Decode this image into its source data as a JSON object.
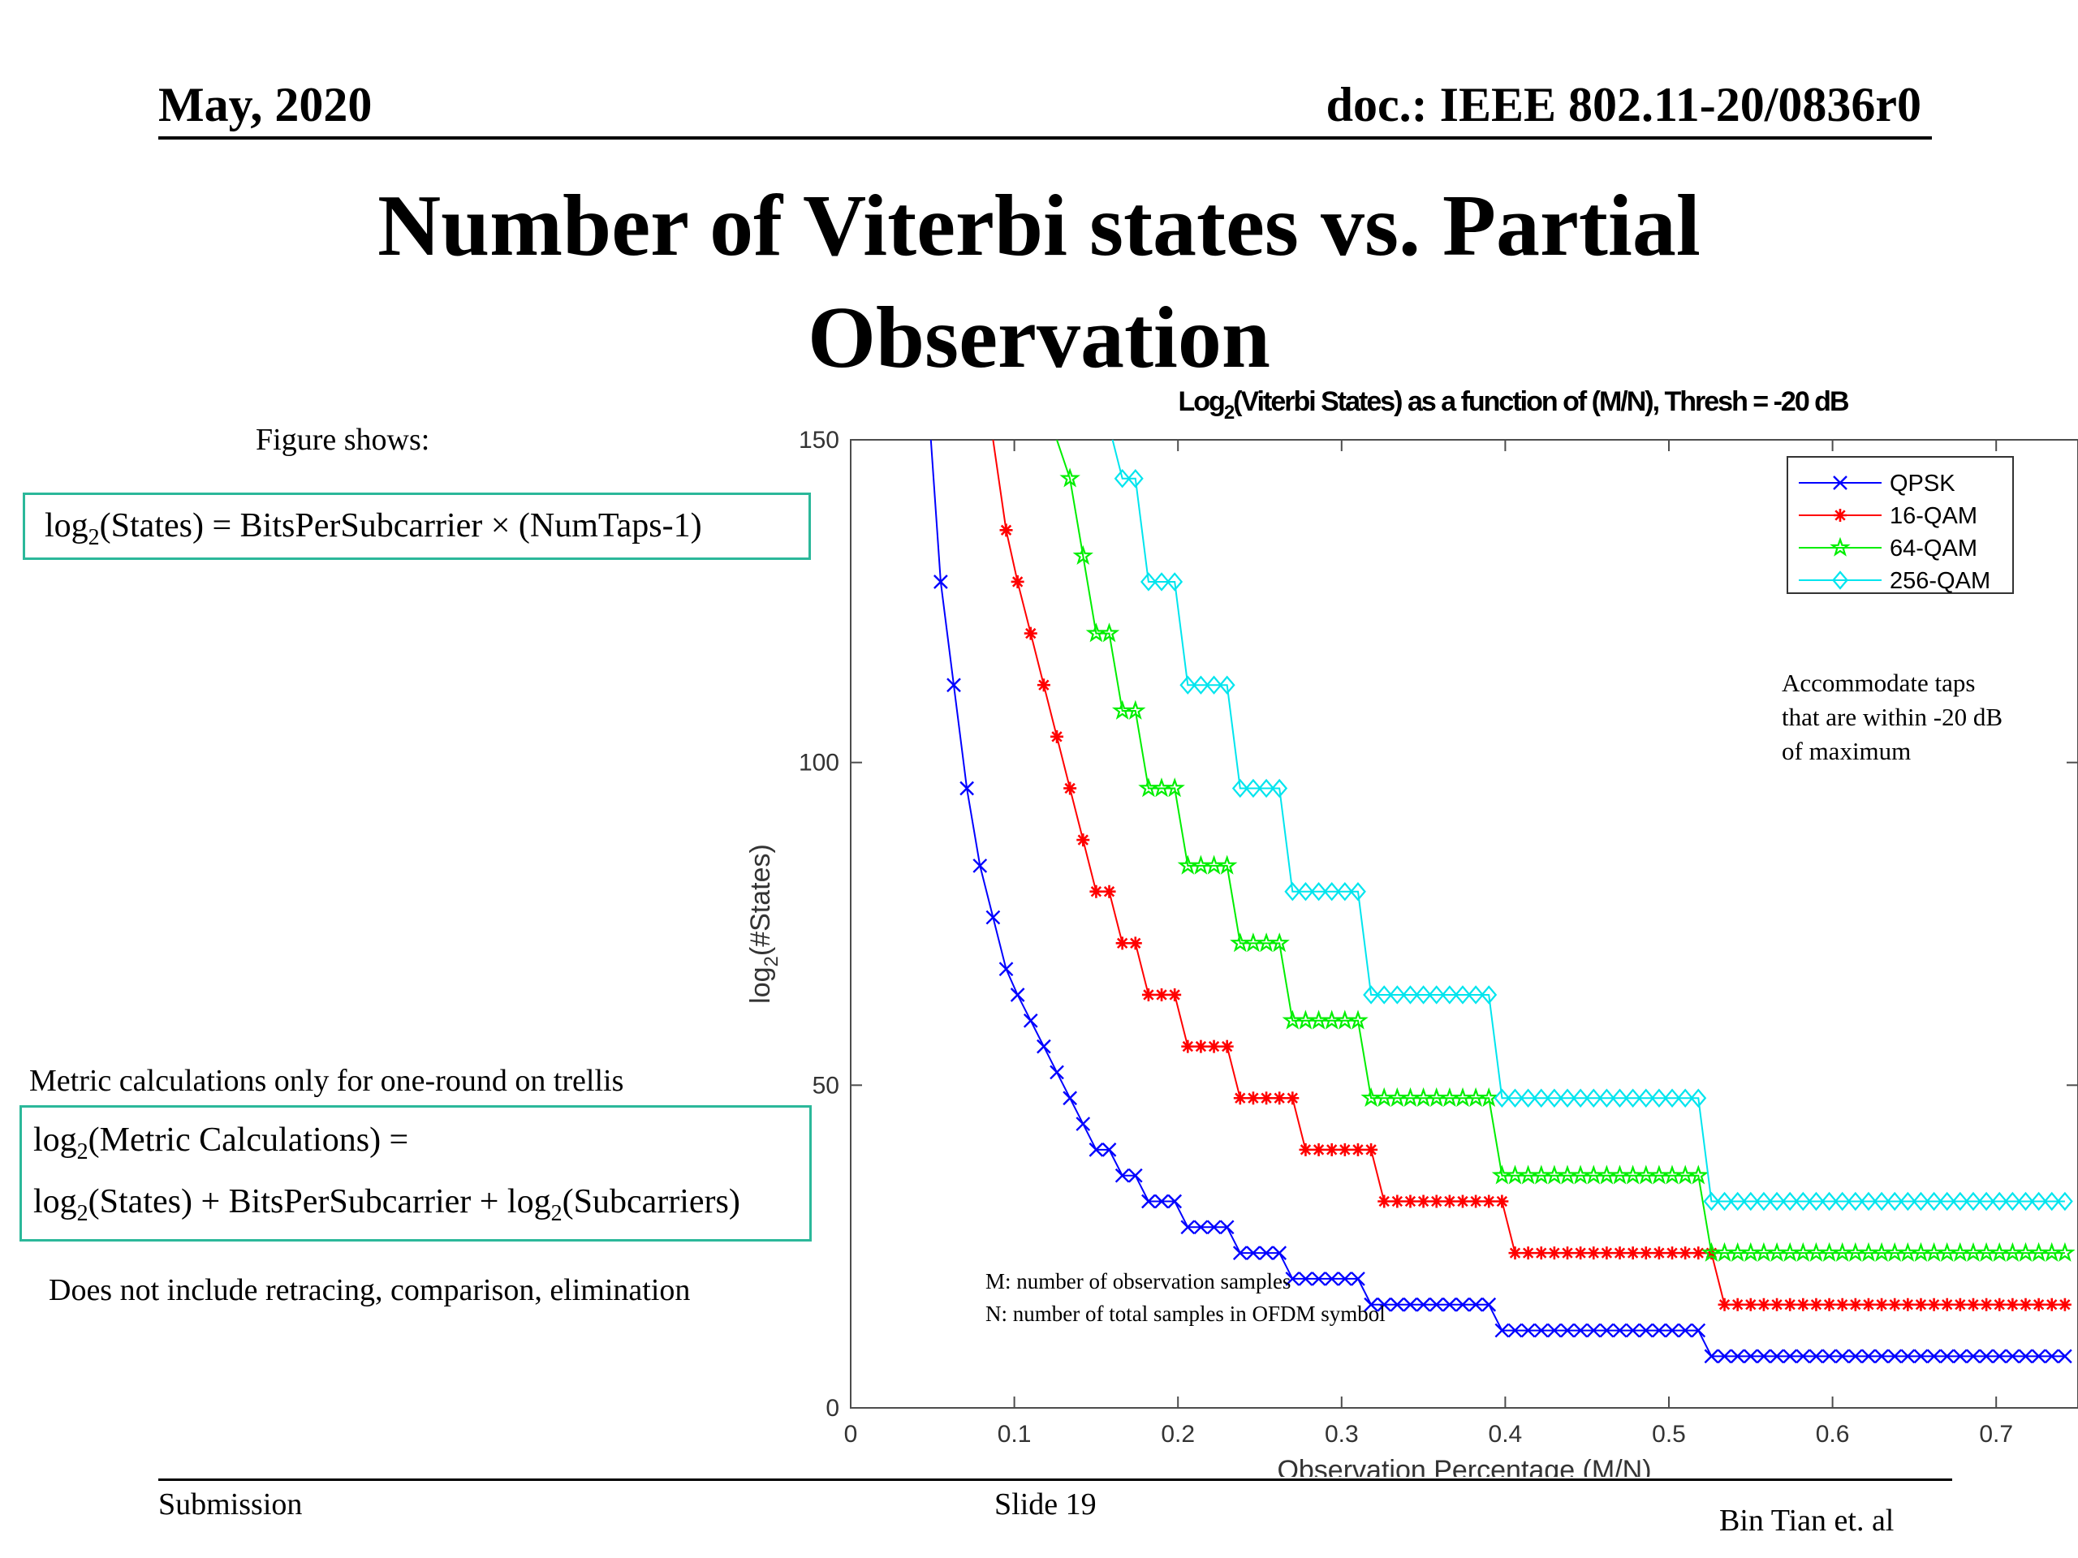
{
  "header": {
    "left": "May, 2020",
    "right": "doc.: IEEE 802.11-20/0836r0"
  },
  "title_lines": [
    "Number of Viterbi states vs. Partial",
    "Observation"
  ],
  "left_panel": {
    "figure_shows": "Figure shows:",
    "formula1": {
      "a": "log",
      "a_sub": "2",
      "b": "(States) = BitsPerSubcarrier × (NumTaps-1)"
    },
    "metric_label": "Metric calculations only for one-round on trellis",
    "formula2_line1": {
      "a": "log",
      "a_sub": "2",
      "b": "(Metric Calculations) ="
    },
    "formula2_line2": {
      "a": "log",
      "a_sub": "2",
      "b": "(States) + BitsPerSubcarrier + log",
      "c_sub": "2",
      "d": "(Subcarriers)"
    },
    "note": "Does not include retracing, comparison, elimination"
  },
  "footer": {
    "left": "Submission",
    "center": "Slide 19",
    "right": "Bin Tian et. al"
  },
  "colors": {
    "accent_box": "#2bb89a",
    "qpsk": "#0000ff",
    "qam16": "#ff0000",
    "qam64": "#00ee00",
    "qam256": "#00e5ee"
  },
  "chart_data": {
    "type": "line",
    "title_pre": "Log",
    "title_sub": "2",
    "title_post": "(Viterbi States) as a function of (M/N), Thresh = -20 dB",
    "xlabel": "Observation Percentage (M/N)",
    "ylabel_pre": "log",
    "ylabel_sub": "2",
    "ylabel_post": "(#States)",
    "xlim": [
      0,
      0.75
    ],
    "ylim": [
      0,
      150
    ],
    "xticks": [
      0,
      0.1,
      0.2,
      0.3,
      0.4,
      0.5,
      0.6,
      0.7
    ],
    "xtick_labels": [
      "0",
      "0.1",
      "0.2",
      "0.3",
      "0.4",
      "0.5",
      "0.6",
      "0.7"
    ],
    "yticks": [
      0,
      50,
      100,
      150
    ],
    "ytick_labels": [
      "0",
      "50",
      "100",
      "150"
    ],
    "legend_position": "top-right",
    "series": [
      {
        "name": "QPSK",
        "color": "#0000ff",
        "marker": "x",
        "x": [
          0.049,
          0.055,
          0.063,
          0.071,
          0.079,
          0.087,
          0.095,
          0.102,
          0.11,
          0.118,
          0.126,
          0.134,
          0.142,
          0.15,
          0.158,
          0.166,
          0.174,
          0.182,
          0.19,
          0.198,
          0.206,
          0.214,
          0.222,
          0.23,
          0.238,
          0.246,
          0.254,
          0.262,
          0.27,
          0.278,
          0.286,
          0.294,
          0.302,
          0.31,
          0.318,
          0.326,
          0.334,
          0.342,
          0.35,
          0.358,
          0.366,
          0.374,
          0.382,
          0.39,
          0.398,
          0.406,
          0.414,
          0.422,
          0.43,
          0.438,
          0.446,
          0.454,
          0.462,
          0.47,
          0.478,
          0.486,
          0.494,
          0.502,
          0.51,
          0.518,
          0.526,
          0.534,
          0.542,
          0.55,
          0.558,
          0.566,
          0.574,
          0.582,
          0.59,
          0.598,
          0.606,
          0.614,
          0.622,
          0.63,
          0.638,
          0.646,
          0.654,
          0.662,
          0.67,
          0.678,
          0.686,
          0.694,
          0.702,
          0.71,
          0.718,
          0.726,
          0.734,
          0.742
        ],
        "y": [
          150,
          128,
          112,
          96,
          84,
          76,
          68,
          64,
          60,
          56,
          52,
          48,
          44,
          40,
          40,
          36,
          36,
          32,
          32,
          32,
          28,
          28,
          28,
          28,
          24,
          24,
          24,
          24,
          20,
          20,
          20,
          20,
          20,
          20,
          16,
          16,
          16,
          16,
          16,
          16,
          16,
          16,
          16,
          16,
          12,
          12,
          12,
          12,
          12,
          12,
          12,
          12,
          12,
          12,
          12,
          12,
          12,
          12,
          12,
          12,
          8,
          8,
          8,
          8,
          8,
          8,
          8,
          8,
          8,
          8,
          8,
          8,
          8,
          8,
          8,
          8,
          8,
          8,
          8,
          8,
          8,
          8,
          8,
          8,
          8,
          8,
          8,
          8
        ]
      },
      {
        "name": "16-QAM",
        "color": "#ff0000",
        "marker": "*",
        "x": [
          0.087,
          0.095,
          0.102,
          0.11,
          0.118,
          0.126,
          0.134,
          0.142,
          0.15,
          0.158,
          0.166,
          0.174,
          0.182,
          0.19,
          0.198,
          0.206,
          0.214,
          0.222,
          0.23,
          0.238,
          0.246,
          0.254,
          0.262,
          0.27,
          0.278,
          0.286,
          0.294,
          0.302,
          0.31,
          0.318,
          0.326,
          0.334,
          0.342,
          0.35,
          0.358,
          0.366,
          0.374,
          0.382,
          0.39,
          0.398,
          0.406,
          0.414,
          0.422,
          0.43,
          0.438,
          0.446,
          0.454,
          0.462,
          0.47,
          0.478,
          0.486,
          0.494,
          0.502,
          0.51,
          0.518,
          0.526,
          0.534,
          0.542,
          0.55,
          0.558,
          0.566,
          0.574,
          0.582,
          0.59,
          0.598,
          0.606,
          0.614,
          0.622,
          0.63,
          0.638,
          0.646,
          0.654,
          0.662,
          0.67,
          0.678,
          0.686,
          0.694,
          0.702,
          0.71,
          0.718,
          0.726,
          0.734,
          0.742
        ],
        "y": [
          150,
          136,
          128,
          120,
          112,
          104,
          96,
          88,
          80,
          80,
          72,
          72,
          64,
          64,
          64,
          56,
          56,
          56,
          56,
          48,
          48,
          48,
          48,
          48,
          40,
          40,
          40,
          40,
          40,
          40,
          32,
          32,
          32,
          32,
          32,
          32,
          32,
          32,
          32,
          32,
          24,
          24,
          24,
          24,
          24,
          24,
          24,
          24,
          24,
          24,
          24,
          24,
          24,
          24,
          24,
          24,
          16,
          16,
          16,
          16,
          16,
          16,
          16,
          16,
          16,
          16,
          16,
          16,
          16,
          16,
          16,
          16,
          16,
          16,
          16,
          16,
          16,
          16,
          16,
          16,
          16,
          16,
          16
        ]
      },
      {
        "name": "64-QAM",
        "color": "#00ee00",
        "marker": "star",
        "x": [
          0.126,
          0.134,
          0.142,
          0.15,
          0.158,
          0.166,
          0.174,
          0.182,
          0.19,
          0.198,
          0.206,
          0.214,
          0.222,
          0.23,
          0.238,
          0.246,
          0.254,
          0.262,
          0.27,
          0.278,
          0.286,
          0.294,
          0.302,
          0.31,
          0.318,
          0.326,
          0.334,
          0.342,
          0.35,
          0.358,
          0.366,
          0.374,
          0.382,
          0.39,
          0.398,
          0.406,
          0.414,
          0.422,
          0.43,
          0.438,
          0.446,
          0.454,
          0.462,
          0.47,
          0.478,
          0.486,
          0.494,
          0.502,
          0.51,
          0.518,
          0.526,
          0.534,
          0.542,
          0.55,
          0.558,
          0.566,
          0.574,
          0.582,
          0.59,
          0.598,
          0.606,
          0.614,
          0.622,
          0.63,
          0.638,
          0.646,
          0.654,
          0.662,
          0.67,
          0.678,
          0.686,
          0.694,
          0.702,
          0.71,
          0.718,
          0.726,
          0.734,
          0.742
        ],
        "y": [
          150,
          144,
          132,
          120,
          120,
          108,
          108,
          96,
          96,
          96,
          84,
          84,
          84,
          84,
          72,
          72,
          72,
          72,
          60,
          60,
          60,
          60,
          60,
          60,
          48,
          48,
          48,
          48,
          48,
          48,
          48,
          48,
          48,
          48,
          36,
          36,
          36,
          36,
          36,
          36,
          36,
          36,
          36,
          36,
          36,
          36,
          36,
          36,
          36,
          36,
          24,
          24,
          24,
          24,
          24,
          24,
          24,
          24,
          24,
          24,
          24,
          24,
          24,
          24,
          24,
          24,
          24,
          24,
          24,
          24,
          24,
          24,
          24,
          24,
          24,
          24,
          24,
          24
        ]
      },
      {
        "name": "256-QAM",
        "color": "#00e5ee",
        "marker": "diamond",
        "x": [
          0.16,
          0.166,
          0.174,
          0.182,
          0.19,
          0.198,
          0.206,
          0.214,
          0.222,
          0.23,
          0.238,
          0.246,
          0.254,
          0.262,
          0.27,
          0.278,
          0.286,
          0.294,
          0.302,
          0.31,
          0.318,
          0.326,
          0.334,
          0.342,
          0.35,
          0.358,
          0.366,
          0.374,
          0.382,
          0.39,
          0.398,
          0.406,
          0.414,
          0.422,
          0.43,
          0.438,
          0.446,
          0.454,
          0.462,
          0.47,
          0.478,
          0.486,
          0.494,
          0.502,
          0.51,
          0.518,
          0.526,
          0.534,
          0.542,
          0.55,
          0.558,
          0.566,
          0.574,
          0.582,
          0.59,
          0.598,
          0.606,
          0.614,
          0.622,
          0.63,
          0.638,
          0.646,
          0.654,
          0.662,
          0.67,
          0.678,
          0.686,
          0.694,
          0.702,
          0.71,
          0.718,
          0.726,
          0.734,
          0.742
        ],
        "y": [
          150,
          144,
          144,
          128,
          128,
          128,
          112,
          112,
          112,
          112,
          96,
          96,
          96,
          96,
          80,
          80,
          80,
          80,
          80,
          80,
          64,
          64,
          64,
          64,
          64,
          64,
          64,
          64,
          64,
          64,
          48,
          48,
          48,
          48,
          48,
          48,
          48,
          48,
          48,
          48,
          48,
          48,
          48,
          48,
          48,
          48,
          32,
          32,
          32,
          32,
          32,
          32,
          32,
          32,
          32,
          32,
          32,
          32,
          32,
          32,
          32,
          32,
          32,
          32,
          32,
          32,
          32,
          32,
          32,
          32,
          32,
          32,
          32,
          32
        ]
      }
    ],
    "annotations": [
      {
        "lines": [
          "Accommodate taps",
          "that are within -20 dB",
          "of maximum"
        ]
      },
      {
        "lines": [
          "M: number of observation samples",
          "N: number of total samples in OFDM symbol"
        ]
      }
    ]
  }
}
